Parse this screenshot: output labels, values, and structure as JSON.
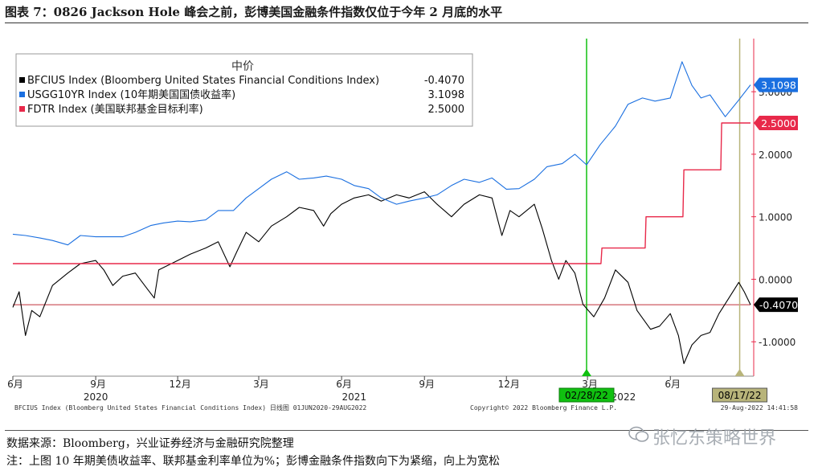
{
  "figure_title": "图表 7：0826 Jackson Hole 峰会之前，彭博美国金融条件指数仅位于今年 2 月底的水平",
  "legend": {
    "header": "中价",
    "items": [
      {
        "label": "BFCIUS Index (Bloomberg United States Financial Conditions Index)",
        "value": "-0.4070",
        "color": "#000000"
      },
      {
        "label": "USGG10YR Index (10年期美国国债收益率)",
        "value": "3.1098",
        "color": "#1a6fe0"
      },
      {
        "label": "FDTR Index (美国联邦基金目标利率)",
        "value": "2.5000",
        "color": "#e8294a"
      }
    ]
  },
  "footer": {
    "left": "BFCIUS Index (Bloomberg United States Financial Conditions Index)  日线图 01JUN2020-29AUG2022",
    "center": "Copyright© 2022 Bloomberg Finance L.P.",
    "right": "29-Aug-2022 14:41:58"
  },
  "source_note": "数据来源：Bloomberg，兴业证券经济与金融研究院整理",
  "unit_note": "注：上图 10 年期美债收益率、联邦基金利率单位为%；彭博金融条件指数向下为紧缩，向上为宽松",
  "watermark": "张忆东策略世界",
  "colors": {
    "bfci": "#000000",
    "ust10y": "#1a6fe0",
    "fdtr": "#e8294a",
    "green_marker": "#10c010",
    "olive_marker": "#b8b47a"
  },
  "chart_data": {
    "type": "line",
    "x_range": [
      "2020-06-01",
      "2022-08-29"
    ],
    "ylim": [
      -1.55,
      3.85
    ],
    "y_ticks": [
      {
        "v": 3.0,
        "label": "3.0000"
      },
      {
        "v": 2.0,
        "label": "2.0000"
      },
      {
        "v": 1.0,
        "label": "1.0000"
      },
      {
        "v": 0.0,
        "label": "0.0000"
      },
      {
        "v": -1.0,
        "label": "-1.0000"
      }
    ],
    "x_ticks": [
      {
        "date": "2020-06-01",
        "label": "6月"
      },
      {
        "date": "2020-09-01",
        "label": "9月"
      },
      {
        "date": "2020-12-01",
        "label": "12月"
      },
      {
        "date": "2021-03-01",
        "label": "3月"
      },
      {
        "date": "2021-06-01",
        "label": "6月"
      },
      {
        "date": "2021-09-01",
        "label": "9月"
      },
      {
        "date": "2021-12-01",
        "label": "12月"
      },
      {
        "date": "2022-03-01",
        "label": "3月"
      },
      {
        "date": "2022-06-01",
        "label": "6月"
      }
    ],
    "year_labels": [
      {
        "date": "2020-09-01",
        "label": "2020"
      },
      {
        "date": "2021-06-15",
        "label": "2021"
      },
      {
        "date": "2022-04-10",
        "label": "2022"
      }
    ],
    "markers": [
      {
        "date": "2022-02-28",
        "label": "02/28/22",
        "color": "#10c010"
      },
      {
        "date": "2022-08-17",
        "label": "08/17/22",
        "color": "#b8b47a"
      }
    ],
    "last_value_tags": [
      {
        "series": "USGG10YR",
        "value": 3.1098,
        "label": "3.1098",
        "bg": "#1a6fe0"
      },
      {
        "series": "FDTR",
        "value": 2.5,
        "label": "2.5000",
        "bg": "#e8294a"
      },
      {
        "series": "BFCIUS",
        "value": -0.407,
        "label": "-0.4070",
        "bg": "#000000"
      }
    ],
    "series": [
      {
        "name": "BFCIUS Index (Bloomberg United States Financial Conditions Index)",
        "color": "#000000",
        "points": [
          [
            "2020-06-01",
            -0.45
          ],
          [
            "2020-06-08",
            -0.2
          ],
          [
            "2020-06-15",
            -0.9
          ],
          [
            "2020-06-22",
            -0.5
          ],
          [
            "2020-07-01",
            -0.6
          ],
          [
            "2020-07-15",
            -0.1
          ],
          [
            "2020-08-01",
            0.1
          ],
          [
            "2020-08-15",
            0.25
          ],
          [
            "2020-09-01",
            0.3
          ],
          [
            "2020-09-10",
            0.15
          ],
          [
            "2020-09-20",
            -0.1
          ],
          [
            "2020-10-01",
            0.05
          ],
          [
            "2020-10-15",
            0.1
          ],
          [
            "2020-10-28",
            -0.15
          ],
          [
            "2020-11-05",
            -0.3
          ],
          [
            "2020-11-10",
            0.15
          ],
          [
            "2020-12-01",
            0.3
          ],
          [
            "2020-12-15",
            0.4
          ],
          [
            "2021-01-01",
            0.5
          ],
          [
            "2021-01-15",
            0.6
          ],
          [
            "2021-01-28",
            0.2
          ],
          [
            "2021-02-05",
            0.45
          ],
          [
            "2021-02-15",
            0.75
          ],
          [
            "2021-03-01",
            0.6
          ],
          [
            "2021-03-15",
            0.85
          ],
          [
            "2021-04-01",
            1.0
          ],
          [
            "2021-04-15",
            1.15
          ],
          [
            "2021-05-01",
            1.1
          ],
          [
            "2021-05-12",
            0.85
          ],
          [
            "2021-05-20",
            1.05
          ],
          [
            "2021-06-01",
            1.2
          ],
          [
            "2021-06-15",
            1.3
          ],
          [
            "2021-07-01",
            1.35
          ],
          [
            "2021-07-15",
            1.25
          ],
          [
            "2021-08-01",
            1.35
          ],
          [
            "2021-08-15",
            1.3
          ],
          [
            "2021-09-01",
            1.4
          ],
          [
            "2021-09-15",
            1.2
          ],
          [
            "2021-10-01",
            1.0
          ],
          [
            "2021-10-15",
            1.2
          ],
          [
            "2021-11-01",
            1.35
          ],
          [
            "2021-11-15",
            1.3
          ],
          [
            "2021-11-26",
            0.7
          ],
          [
            "2021-12-05",
            1.1
          ],
          [
            "2021-12-15",
            1.0
          ],
          [
            "2022-01-01",
            1.2
          ],
          [
            "2022-01-10",
            0.8
          ],
          [
            "2022-01-20",
            0.3
          ],
          [
            "2022-01-28",
            0.0
          ],
          [
            "2022-02-05",
            0.3
          ],
          [
            "2022-02-15",
            0.1
          ],
          [
            "2022-02-24",
            -0.4
          ],
          [
            "2022-03-08",
            -0.6
          ],
          [
            "2022-03-20",
            -0.3
          ],
          [
            "2022-04-01",
            0.15
          ],
          [
            "2022-04-15",
            -0.05
          ],
          [
            "2022-04-25",
            -0.5
          ],
          [
            "2022-05-10",
            -0.8
          ],
          [
            "2022-05-20",
            -0.75
          ],
          [
            "2022-06-01",
            -0.55
          ],
          [
            "2022-06-10",
            -0.9
          ],
          [
            "2022-06-16",
            -1.35
          ],
          [
            "2022-06-25",
            -1.05
          ],
          [
            "2022-07-05",
            -0.9
          ],
          [
            "2022-07-15",
            -0.85
          ],
          [
            "2022-07-25",
            -0.55
          ],
          [
            "2022-08-05",
            -0.3
          ],
          [
            "2022-08-16",
            -0.05
          ],
          [
            "2022-08-22",
            -0.2
          ],
          [
            "2022-08-29",
            -0.407
          ]
        ]
      },
      {
        "name": "USGG10YR Index (10年期美国国债收益率)",
        "color": "#1a6fe0",
        "points": [
          [
            "2020-06-01",
            0.72
          ],
          [
            "2020-06-15",
            0.7
          ],
          [
            "2020-07-01",
            0.66
          ],
          [
            "2020-07-15",
            0.62
          ],
          [
            "2020-08-01",
            0.55
          ],
          [
            "2020-08-15",
            0.7
          ],
          [
            "2020-09-01",
            0.68
          ],
          [
            "2020-09-15",
            0.68
          ],
          [
            "2020-10-01",
            0.68
          ],
          [
            "2020-10-15",
            0.75
          ],
          [
            "2020-11-01",
            0.86
          ],
          [
            "2020-11-15",
            0.9
          ],
          [
            "2020-12-01",
            0.93
          ],
          [
            "2020-12-15",
            0.92
          ],
          [
            "2021-01-01",
            0.95
          ],
          [
            "2021-01-15",
            1.1
          ],
          [
            "2021-02-01",
            1.1
          ],
          [
            "2021-02-15",
            1.3
          ],
          [
            "2021-03-01",
            1.45
          ],
          [
            "2021-03-15",
            1.6
          ],
          [
            "2021-04-01",
            1.72
          ],
          [
            "2021-04-15",
            1.6
          ],
          [
            "2021-05-01",
            1.62
          ],
          [
            "2021-05-15",
            1.65
          ],
          [
            "2021-06-01",
            1.6
          ],
          [
            "2021-06-15",
            1.5
          ],
          [
            "2021-07-01",
            1.45
          ],
          [
            "2021-07-15",
            1.3
          ],
          [
            "2021-08-01",
            1.2
          ],
          [
            "2021-08-15",
            1.25
          ],
          [
            "2021-09-01",
            1.3
          ],
          [
            "2021-09-15",
            1.35
          ],
          [
            "2021-10-01",
            1.5
          ],
          [
            "2021-10-15",
            1.6
          ],
          [
            "2021-11-01",
            1.55
          ],
          [
            "2021-11-15",
            1.62
          ],
          [
            "2021-12-01",
            1.44
          ],
          [
            "2021-12-15",
            1.45
          ],
          [
            "2022-01-01",
            1.6
          ],
          [
            "2022-01-15",
            1.8
          ],
          [
            "2022-02-01",
            1.85
          ],
          [
            "2022-02-15",
            2.0
          ],
          [
            "2022-02-28",
            1.83
          ],
          [
            "2022-03-15",
            2.15
          ],
          [
            "2022-04-01",
            2.45
          ],
          [
            "2022-04-15",
            2.8
          ],
          [
            "2022-05-01",
            2.9
          ],
          [
            "2022-05-15",
            2.85
          ],
          [
            "2022-06-01",
            2.9
          ],
          [
            "2022-06-14",
            3.48
          ],
          [
            "2022-06-25",
            3.1
          ],
          [
            "2022-07-05",
            2.9
          ],
          [
            "2022-07-15",
            2.95
          ],
          [
            "2022-08-01",
            2.6
          ],
          [
            "2022-08-15",
            2.85
          ],
          [
            "2022-08-29",
            3.1098
          ]
        ]
      },
      {
        "name": "FDTR Index (美国联邦基金目标利率)",
        "color": "#e8294a",
        "points": [
          [
            "2020-06-01",
            0.25
          ],
          [
            "2022-03-16",
            0.25
          ],
          [
            "2022-03-17",
            0.5
          ],
          [
            "2022-05-04",
            0.5
          ],
          [
            "2022-05-05",
            1.0
          ],
          [
            "2022-06-15",
            1.0
          ],
          [
            "2022-06-16",
            1.75
          ],
          [
            "2022-07-27",
            1.75
          ],
          [
            "2022-07-28",
            2.5
          ],
          [
            "2022-08-29",
            2.5
          ]
        ]
      }
    ]
  }
}
